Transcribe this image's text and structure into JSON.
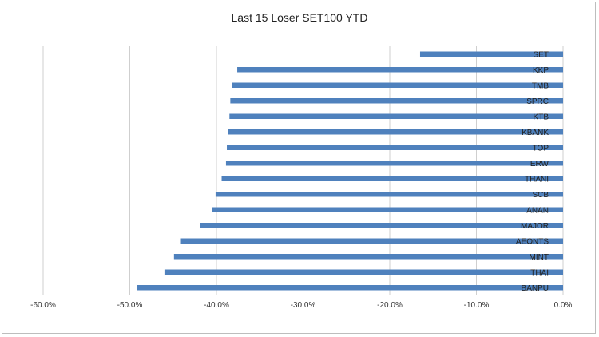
{
  "chart_data": {
    "type": "bar",
    "orientation": "horizontal",
    "title": "Last 15 Loser SET100 YTD",
    "xlabel": "",
    "ylabel": "",
    "categories": [
      "SET",
      "KKP",
      "TMB",
      "SPRC",
      "KTB",
      "KBANK",
      "TOP",
      "ERW",
      "THANI",
      "SCB",
      "ANAN",
      "MAJOR",
      "AEONTS",
      "MINT",
      "THAI",
      "BANPU"
    ],
    "values": [
      -16.5,
      -37.6,
      -38.2,
      -38.4,
      -38.5,
      -38.7,
      -38.8,
      -38.9,
      -39.4,
      -40.1,
      -40.5,
      -41.9,
      -44.1,
      -44.9,
      -46.0,
      -49.2
    ],
    "xlim": [
      -60,
      0
    ],
    "xticks": [
      -60,
      -50,
      -40,
      -30,
      -20,
      -10,
      0
    ],
    "xtick_labels": [
      "-60.0%",
      "-50.0%",
      "-40.0%",
      "-30.0%",
      "-20.0%",
      "-10.0%",
      "0.0%"
    ],
    "grid": "vertical",
    "bar_color": "#4f81bd",
    "legend": "none"
  }
}
